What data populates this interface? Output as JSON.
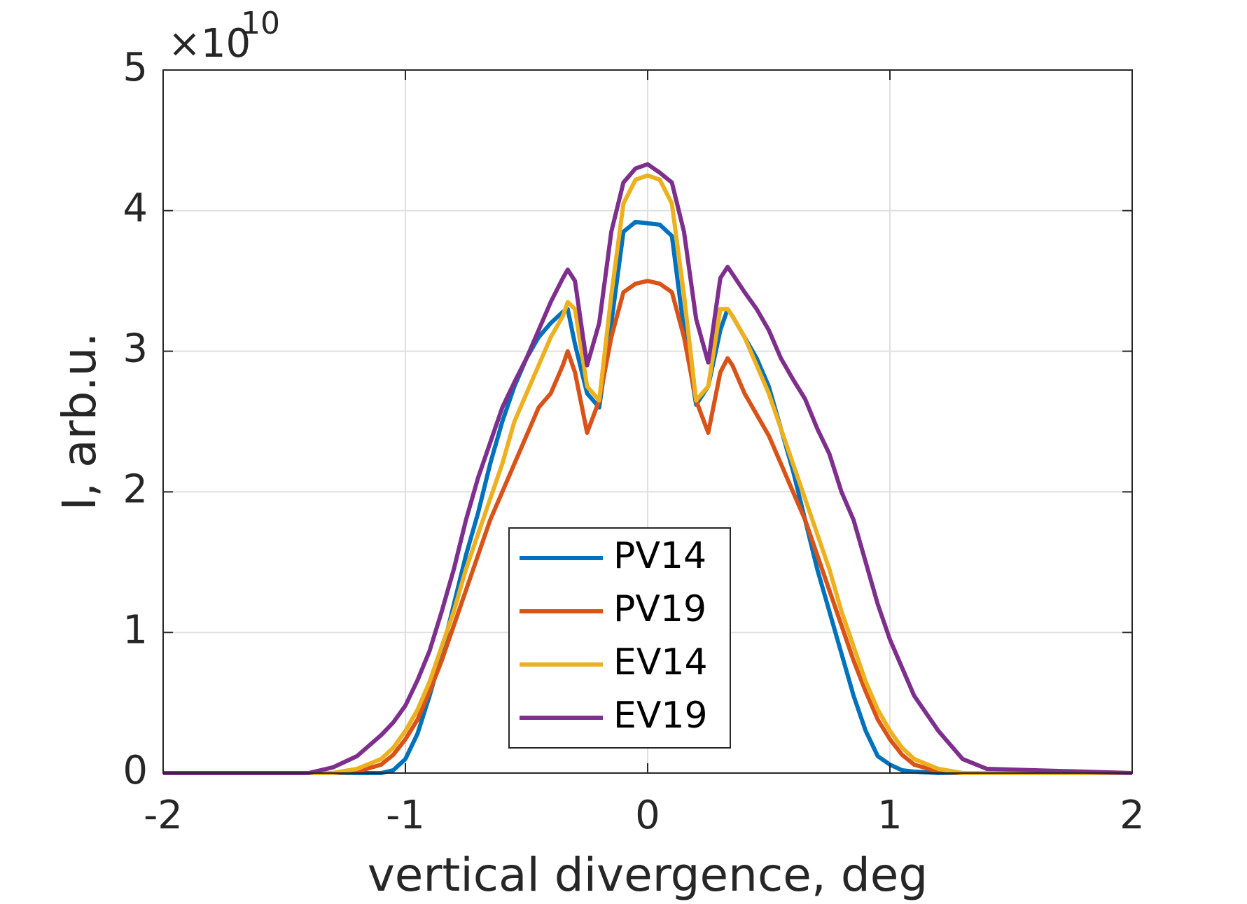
{
  "chart_data": {
    "type": "line",
    "xlabel": "vertical divergence, deg",
    "ylabel": "I, arb.u.",
    "y_multiplier": "×10",
    "y_multiplier_exponent": "10",
    "xlim": [
      -2,
      2
    ],
    "xticks": [
      -2,
      -1,
      0,
      1,
      2
    ],
    "ylim": [
      0,
      5
    ],
    "yticks": [
      0,
      1,
      2,
      3,
      4,
      5
    ],
    "grid": true,
    "legend_loc": "south",
    "x": [
      -2,
      -1.4,
      -1.3,
      -1.2,
      -1.1,
      -1.05,
      -1,
      -0.95,
      -0.9,
      -0.85,
      -0.8,
      -0.75,
      -0.7,
      -0.65,
      -0.6,
      -0.55,
      -0.5,
      -0.45,
      -0.4,
      -0.35,
      -0.33,
      -0.3,
      -0.25,
      -0.2,
      -0.15,
      -0.1,
      -0.05,
      0,
      0.05,
      0.1,
      0.15,
      0.2,
      0.25,
      0.3,
      0.33,
      0.35,
      0.4,
      0.45,
      0.5,
      0.55,
      0.6,
      0.65,
      0.7,
      0.75,
      0.8,
      0.85,
      0.9,
      0.95,
      1,
      1.05,
      1.1,
      1.2,
      1.3,
      1.4,
      2
    ],
    "series": [
      {
        "name": "PV14",
        "color": "#0072bd",
        "values": [
          0,
          0,
          0,
          0,
          0,
          0.02,
          0.1,
          0.28,
          0.55,
          0.85,
          1.2,
          1.55,
          1.85,
          2.2,
          2.5,
          2.75,
          2.95,
          3.1,
          3.2,
          3.28,
          3.3,
          3.05,
          2.7,
          2.6,
          3.2,
          3.85,
          3.92,
          3.91,
          3.9,
          3.82,
          3.15,
          2.62,
          2.75,
          3.15,
          3.3,
          3.25,
          3.1,
          2.95,
          2.75,
          2.45,
          2.15,
          1.8,
          1.45,
          1.15,
          0.85,
          0.55,
          0.3,
          0.12,
          0.06,
          0.02,
          0.01,
          0,
          0,
          0,
          0
        ]
      },
      {
        "name": "PV19",
        "color": "#d95319",
        "values": [
          0,
          0,
          0,
          0.01,
          0.06,
          0.13,
          0.24,
          0.38,
          0.58,
          0.8,
          1.05,
          1.3,
          1.55,
          1.8,
          2.0,
          2.2,
          2.4,
          2.6,
          2.7,
          2.9,
          3.0,
          2.85,
          2.42,
          2.65,
          3.1,
          3.42,
          3.48,
          3.5,
          3.48,
          3.42,
          3.1,
          2.65,
          2.42,
          2.85,
          2.95,
          2.9,
          2.7,
          2.55,
          2.4,
          2.2,
          2.0,
          1.8,
          1.55,
          1.3,
          1.05,
          0.8,
          0.58,
          0.38,
          0.24,
          0.13,
          0.06,
          0.01,
          0,
          0,
          0
        ]
      },
      {
        "name": "EV14",
        "color": "#edb120",
        "values": [
          0,
          0,
          0,
          0.03,
          0.1,
          0.18,
          0.3,
          0.45,
          0.65,
          0.9,
          1.15,
          1.45,
          1.7,
          1.95,
          2.2,
          2.5,
          2.7,
          2.9,
          3.1,
          3.25,
          3.35,
          3.3,
          2.75,
          2.65,
          3.4,
          4.05,
          4.22,
          4.25,
          4.22,
          4.05,
          3.4,
          2.65,
          2.75,
          3.3,
          3.3,
          3.25,
          3.1,
          2.9,
          2.7,
          2.45,
          2.2,
          1.95,
          1.7,
          1.45,
          1.15,
          0.9,
          0.65,
          0.45,
          0.3,
          0.18,
          0.1,
          0.03,
          0,
          0,
          0
        ]
      },
      {
        "name": "EV19",
        "color": "#7e2f8e",
        "values": [
          0,
          0,
          0.04,
          0.12,
          0.27,
          0.36,
          0.48,
          0.66,
          0.87,
          1.15,
          1.45,
          1.8,
          2.1,
          2.35,
          2.6,
          2.78,
          2.95,
          3.15,
          3.35,
          3.52,
          3.58,
          3.5,
          2.9,
          3.2,
          3.85,
          4.2,
          4.3,
          4.33,
          4.27,
          4.2,
          3.85,
          3.23,
          2.92,
          3.52,
          3.6,
          3.55,
          3.42,
          3.3,
          3.15,
          2.95,
          2.8,
          2.66,
          2.45,
          2.27,
          2.0,
          1.8,
          1.5,
          1.2,
          0.95,
          0.75,
          0.55,
          0.3,
          0.1,
          0.03,
          0
        ]
      }
    ]
  }
}
